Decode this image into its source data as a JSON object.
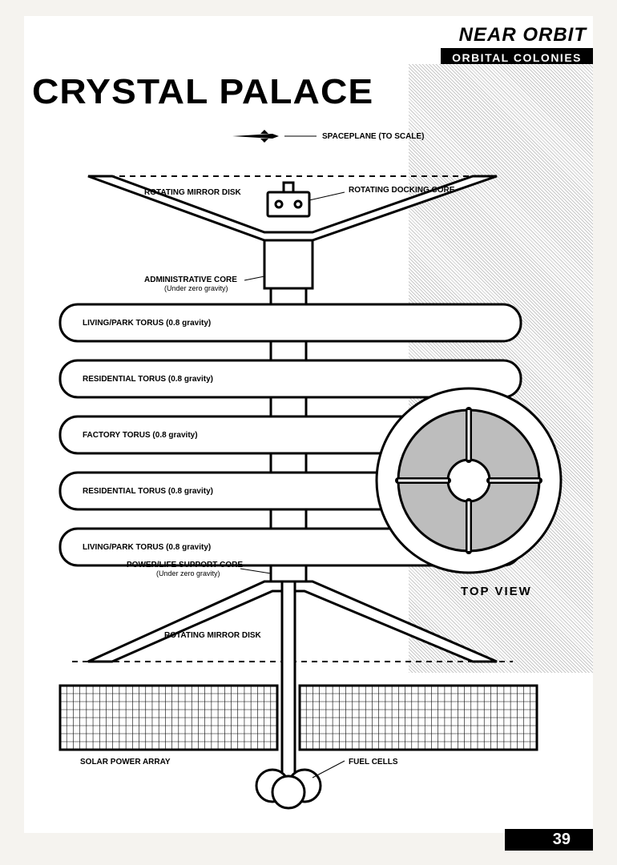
{
  "header": {
    "line1": "NEAR ORBIT",
    "line2": "ORBITAL COLONIES"
  },
  "title": "CRYSTAL PALACE",
  "pageNumber": "39",
  "labels": {
    "spaceplane": "SPACEPLANE (TO SCALE)",
    "rotatingMirrorDisk": "ROTATING MIRROR DISK",
    "rotatingDockingCore": "ROTATING DOCKING CORE",
    "administrativeCore": "ADMINISTRATIVE CORE",
    "administrativeCoreSub": "(Under zero gravity)",
    "powerLifeCore": "POWER/LIFE SUPPORT CORE",
    "powerLifeCoreSub": "(Under zero gravity)",
    "solarArray": "SOLAR POWER ARRAY",
    "fuelCells": "FUEL CELLS",
    "topView": "TOP  VIEW"
  },
  "torus": [
    {
      "label": "LIVING/PARK TORUS (0.8 gravity)"
    },
    {
      "label": "RESIDENTIAL TORUS (0.8 gravity)"
    },
    {
      "label": "FACTORY TORUS (0.8 gravity)"
    },
    {
      "label": "RESIDENTIAL TORUS (0.8 gravity)"
    },
    {
      "label": "LIVING/PARK TORUS (0.8 gravity)"
    }
  ],
  "style": {
    "stroke": "#000000",
    "strokeWidth": 3,
    "bg": "#ffffff",
    "dash": "7,6",
    "torusHeight": 46,
    "torusGap": 24,
    "torusTop": 240,
    "torusRadius": 22,
    "centerX": 330,
    "topViewOuterR": 115,
    "topViewInnerR": 88,
    "topViewHubR": 26,
    "gridCols": 36,
    "gridRows": 8
  }
}
